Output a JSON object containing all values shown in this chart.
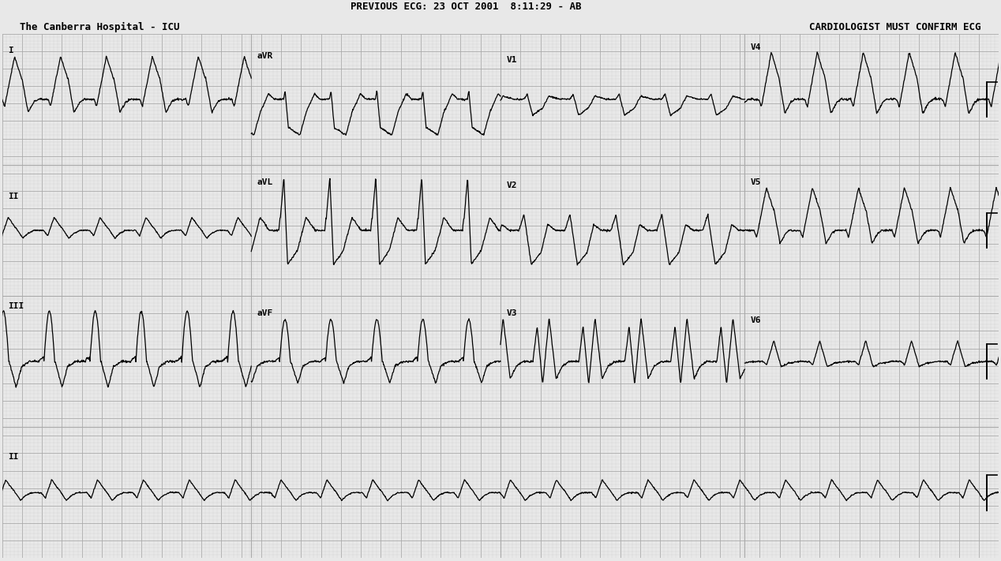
{
  "title_line1": "PREVIOUS ECG: 23 OCT 2001  8:11:29 - AB",
  "title_line2": "The Canberra Hospital - ICU",
  "top_right": "CARDIOLOGIST MUST CONFIRM ECG",
  "background_color": "#e8e8e8",
  "grid_major_color": "#aaaaaa",
  "grid_minor_color": "#cccccc",
  "ecg_color": "#000000",
  "text_color": "#000000",
  "figsize": [
    12.68,
    7.11
  ],
  "dpi": 100,
  "heart_rate": 130,
  "paper_speed": 25,
  "duration": 10.0
}
